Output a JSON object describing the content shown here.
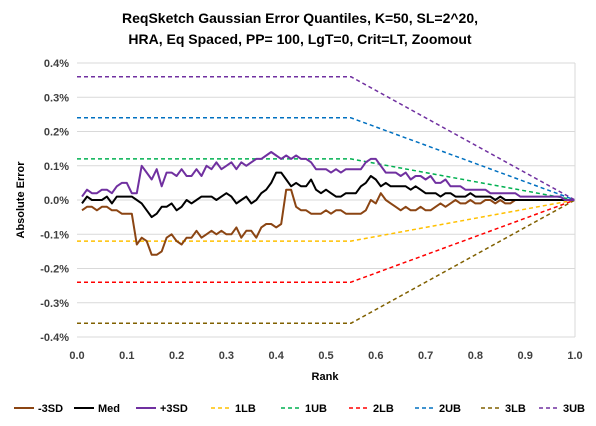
{
  "chart_data": {
    "type": "line",
    "title_lines": [
      "ReqSketch Gaussian Error Quantiles, K=50, SL=2^20,",
      "HRA, Eq Spaced, PP= 100, LgT=0, Crit=LT, Zoomout"
    ],
    "xlabel": "Rank",
    "ylabel": "Absolute Error",
    "xlim": [
      0,
      1
    ],
    "ylim": [
      -0.004,
      0.004
    ],
    "x_ticks": [
      0.0,
      0.1,
      0.2,
      0.3,
      0.4,
      0.5,
      0.6,
      0.7,
      0.8,
      0.9,
      1.0
    ],
    "x_tick_labels": [
      "0.0",
      "0.1",
      "0.2",
      "0.3",
      "0.4",
      "0.5",
      "0.6",
      "0.7",
      "0.8",
      "0.9",
      "1.0"
    ],
    "y_ticks": [
      0.004,
      0.003,
      0.002,
      0.001,
      0.0,
      -0.001,
      -0.002,
      -0.003,
      -0.004
    ],
    "y_tick_labels": [
      "0.4%",
      "0.3%",
      "0.2%",
      "0.1%",
      "0.0%",
      "-0.1%",
      "-0.2%",
      "-0.3%",
      "-0.4%"
    ],
    "grid": "horizontal",
    "legend_position": "bottom",
    "series": [
      {
        "name": "-3SD",
        "color": "#8B4513",
        "dash": false,
        "width": 2,
        "x": [
          0.01,
          0.02,
          0.03,
          0.04,
          0.05,
          0.06,
          0.07,
          0.08,
          0.09,
          0.1,
          0.11,
          0.12,
          0.13,
          0.14,
          0.15,
          0.16,
          0.17,
          0.18,
          0.19,
          0.2,
          0.21,
          0.22,
          0.23,
          0.24,
          0.25,
          0.26,
          0.27,
          0.28,
          0.29,
          0.3,
          0.31,
          0.32,
          0.33,
          0.34,
          0.35,
          0.36,
          0.37,
          0.38,
          0.39,
          0.4,
          0.41,
          0.42,
          0.43,
          0.44,
          0.45,
          0.46,
          0.47,
          0.48,
          0.49,
          0.5,
          0.51,
          0.52,
          0.53,
          0.54,
          0.55,
          0.56,
          0.57,
          0.58,
          0.59,
          0.6,
          0.61,
          0.62,
          0.63,
          0.64,
          0.65,
          0.66,
          0.67,
          0.68,
          0.69,
          0.7,
          0.71,
          0.72,
          0.73,
          0.74,
          0.75,
          0.76,
          0.77,
          0.78,
          0.79,
          0.8,
          0.81,
          0.82,
          0.83,
          0.84,
          0.85,
          0.86,
          0.87,
          0.88,
          0.89,
          0.9,
          0.91,
          0.92,
          0.93,
          0.94,
          0.95,
          0.96,
          0.97,
          0.98,
          0.99,
          1.0
        ],
        "y": [
          -0.0003,
          -0.0002,
          -0.0002,
          -0.0003,
          -0.0002,
          -0.0002,
          -0.0003,
          -0.0003,
          -0.0004,
          -0.0004,
          -0.0004,
          -0.0013,
          -0.0011,
          -0.0012,
          -0.0016,
          -0.0016,
          -0.0015,
          -0.0011,
          -0.001,
          -0.0012,
          -0.0013,
          -0.0011,
          -0.0011,
          -0.0009,
          -0.0011,
          -0.001,
          -0.0009,
          -0.001,
          -0.0009,
          -0.001,
          -0.001,
          -0.0008,
          -0.0011,
          -0.0009,
          -0.0009,
          -0.0011,
          -0.0008,
          -0.0007,
          -0.0007,
          -0.0008,
          -0.0007,
          0.0003,
          0.0003,
          -0.0002,
          -0.0003,
          -0.0003,
          -0.0004,
          -0.0004,
          -0.0004,
          -0.0003,
          -0.0004,
          -0.0003,
          -0.0003,
          -0.0004,
          -0.0004,
          -0.0004,
          -0.0004,
          -0.0003,
          0.0,
          -0.0001,
          0.0002,
          0.0,
          -0.0001,
          -0.0002,
          -0.0003,
          -0.0002,
          -0.0003,
          -0.0003,
          -0.0002,
          -0.0003,
          -0.0003,
          -0.0002,
          -0.0001,
          -0.0002,
          -0.0001,
          0.0,
          -0.0001,
          -0.0001,
          0.0,
          -0.0001,
          -0.0001,
          0.0,
          0.0,
          -0.0001,
          0.0,
          -0.0001,
          -0.0001,
          0.0,
          0.0,
          0.0,
          0.0,
          0.0,
          0.0,
          0.0,
          0.0,
          0.0,
          0.0,
          0.0,
          0.0,
          0.0
        ]
      },
      {
        "name": "Med",
        "color": "#000000",
        "dash": false,
        "width": 2,
        "x": [
          0.01,
          0.02,
          0.03,
          0.04,
          0.05,
          0.06,
          0.07,
          0.08,
          0.09,
          0.1,
          0.11,
          0.12,
          0.13,
          0.14,
          0.15,
          0.16,
          0.17,
          0.18,
          0.19,
          0.2,
          0.21,
          0.22,
          0.23,
          0.24,
          0.25,
          0.26,
          0.27,
          0.28,
          0.29,
          0.3,
          0.31,
          0.32,
          0.33,
          0.34,
          0.35,
          0.36,
          0.37,
          0.38,
          0.39,
          0.4,
          0.41,
          0.42,
          0.43,
          0.44,
          0.45,
          0.46,
          0.47,
          0.48,
          0.49,
          0.5,
          0.51,
          0.52,
          0.53,
          0.54,
          0.55,
          0.56,
          0.57,
          0.58,
          0.59,
          0.6,
          0.61,
          0.62,
          0.63,
          0.64,
          0.65,
          0.66,
          0.67,
          0.68,
          0.69,
          0.7,
          0.71,
          0.72,
          0.73,
          0.74,
          0.75,
          0.76,
          0.77,
          0.78,
          0.79,
          0.8,
          0.81,
          0.82,
          0.83,
          0.84,
          0.85,
          0.86,
          0.87,
          0.88,
          0.89,
          0.9,
          0.91,
          0.92,
          0.93,
          0.94,
          0.95,
          0.96,
          0.97,
          0.98,
          0.99,
          1.0
        ],
        "y": [
          -0.0001,
          0.0001,
          0.0,
          0.0,
          0.0,
          0.0001,
          -0.0001,
          0.0001,
          0.0001,
          0.0001,
          0.0001,
          0.0,
          -0.0001,
          -0.0003,
          -0.0005,
          -0.0004,
          -0.0002,
          -0.0002,
          -0.0001,
          -0.0003,
          -0.0002,
          0.0,
          -0.0001,
          0.0,
          0.0001,
          0.0001,
          0.0001,
          0.0,
          0.0001,
          0.0002,
          0.0001,
          -0.0001,
          0.0,
          0.0001,
          -0.0001,
          0.0,
          0.0002,
          0.0003,
          0.0005,
          0.0008,
          0.0008,
          0.0006,
          0.0004,
          0.0005,
          0.0004,
          0.0004,
          0.0006,
          0.0003,
          0.0002,
          0.0003,
          0.0002,
          0.0001,
          0.0001,
          0.0002,
          0.0002,
          0.0002,
          0.0004,
          0.0005,
          0.0007,
          0.0006,
          0.0004,
          0.0005,
          0.0004,
          0.0004,
          0.0004,
          0.0004,
          0.0003,
          0.0004,
          0.0003,
          0.0002,
          0.0002,
          0.0002,
          0.0001,
          0.0002,
          0.0002,
          0.0001,
          0.0001,
          0.0001,
          0.0002,
          0.0001,
          0.0001,
          0.0001,
          0.0001,
          0.0,
          0.0001,
          0.0,
          0.0,
          0.0,
          0.0,
          0.0,
          0.0,
          0.0,
          0.0,
          0.0,
          0.0,
          0.0,
          0.0,
          0.0,
          0.0,
          0.0
        ]
      },
      {
        "name": "+3SD",
        "color": "#7030A0",
        "dash": false,
        "width": 2,
        "x": [
          0.01,
          0.02,
          0.03,
          0.04,
          0.05,
          0.06,
          0.07,
          0.08,
          0.09,
          0.1,
          0.11,
          0.12,
          0.13,
          0.14,
          0.15,
          0.16,
          0.17,
          0.18,
          0.19,
          0.2,
          0.21,
          0.22,
          0.23,
          0.24,
          0.25,
          0.26,
          0.27,
          0.28,
          0.29,
          0.3,
          0.31,
          0.32,
          0.33,
          0.34,
          0.35,
          0.36,
          0.37,
          0.38,
          0.39,
          0.4,
          0.41,
          0.42,
          0.43,
          0.44,
          0.45,
          0.46,
          0.47,
          0.48,
          0.49,
          0.5,
          0.51,
          0.52,
          0.53,
          0.54,
          0.55,
          0.56,
          0.57,
          0.58,
          0.59,
          0.6,
          0.61,
          0.62,
          0.63,
          0.64,
          0.65,
          0.66,
          0.67,
          0.68,
          0.69,
          0.7,
          0.71,
          0.72,
          0.73,
          0.74,
          0.75,
          0.76,
          0.77,
          0.78,
          0.79,
          0.8,
          0.81,
          0.82,
          0.83,
          0.84,
          0.85,
          0.86,
          0.87,
          0.88,
          0.89,
          0.9,
          0.91,
          0.92,
          0.93,
          0.94,
          0.95,
          0.96,
          0.97,
          0.98,
          0.99,
          1.0
        ],
        "y": [
          0.0001,
          0.0003,
          0.0002,
          0.0002,
          0.0003,
          0.0003,
          0.0002,
          0.0004,
          0.0005,
          0.0005,
          0.0002,
          0.0002,
          0.001,
          0.0008,
          0.0006,
          0.0009,
          0.0004,
          0.0008,
          0.0008,
          0.0007,
          0.0009,
          0.0007,
          0.0007,
          0.0009,
          0.0007,
          0.001,
          0.0009,
          0.0011,
          0.0009,
          0.001,
          0.0011,
          0.0009,
          0.0011,
          0.001,
          0.0011,
          0.0012,
          0.0012,
          0.0013,
          0.0014,
          0.0013,
          0.0012,
          0.0013,
          0.0012,
          0.0013,
          0.0012,
          0.0012,
          0.0011,
          0.0009,
          0.0009,
          0.0009,
          0.0008,
          0.0009,
          0.0008,
          0.0009,
          0.0009,
          0.0009,
          0.0009,
          0.0011,
          0.0012,
          0.0012,
          0.001,
          0.0008,
          0.0008,
          0.0008,
          0.0007,
          0.0008,
          0.0006,
          0.0007,
          0.0007,
          0.0006,
          0.0007,
          0.0005,
          0.0005,
          0.0006,
          0.0004,
          0.0004,
          0.0004,
          0.0003,
          0.0003,
          0.0003,
          0.0003,
          0.0003,
          0.0002,
          0.0002,
          0.0002,
          0.0002,
          0.0002,
          0.0002,
          0.0001,
          0.0001,
          0.0001,
          0.0001,
          0.0001,
          0.0001,
          0.0001,
          0.0001,
          0.0001,
          0.0,
          0.0,
          0.0
        ]
      },
      {
        "name": "1LB",
        "color": "#FFC000",
        "dash": true,
        "width": 1.5,
        "x": [
          0.0,
          0.55,
          1.0
        ],
        "y": [
          -0.0012,
          -0.0012,
          0.0
        ]
      },
      {
        "name": "1UB",
        "color": "#00B050",
        "dash": true,
        "width": 1.5,
        "x": [
          0.0,
          0.55,
          1.0
        ],
        "y": [
          0.0012,
          0.0012,
          0.0
        ]
      },
      {
        "name": "2LB",
        "color": "#FF0000",
        "dash": true,
        "width": 1.5,
        "x": [
          0.0,
          0.55,
          1.0
        ],
        "y": [
          -0.0024,
          -0.0024,
          0.0
        ]
      },
      {
        "name": "2UB",
        "color": "#0070C0",
        "dash": true,
        "width": 1.5,
        "x": [
          0.0,
          0.55,
          1.0
        ],
        "y": [
          0.0024,
          0.0024,
          0.0
        ]
      },
      {
        "name": "3LB",
        "color": "#806000",
        "dash": true,
        "width": 1.5,
        "x": [
          0.0,
          0.55,
          1.0
        ],
        "y": [
          -0.0036,
          -0.0036,
          0.0
        ]
      },
      {
        "name": "3UB",
        "color": "#7030A0",
        "dash": true,
        "width": 1.5,
        "x": [
          0.0,
          0.55,
          1.0
        ],
        "y": [
          0.0036,
          0.0036,
          0.0
        ]
      }
    ]
  }
}
